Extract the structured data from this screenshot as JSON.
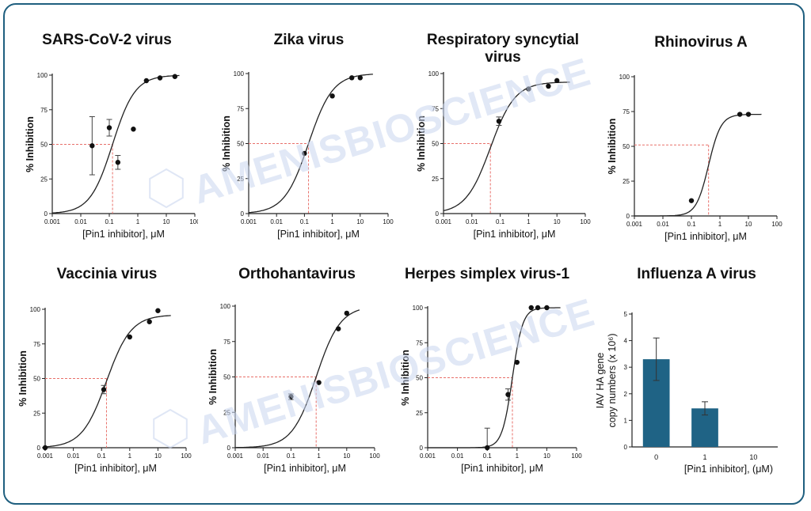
{
  "watermark": "AMENISBIOSCIENCE",
  "colors": {
    "frame": "#1f5f7f",
    "bar": "#1f6385",
    "ref_line": "#e8706a",
    "watermark": "#c9d6ee"
  },
  "chart_data": [
    {
      "id": "sars",
      "type": "scatter",
      "title": "SARS-CoV-2 virus",
      "title_lines": [
        "SARS-CoV-2 virus"
      ],
      "xlabel": "[Pin1 inhibitor], μM",
      "ylabel": "% Inhibition",
      "xscale": "log",
      "xlim": [
        0.001,
        100
      ],
      "ylim": [
        0,
        100
      ],
      "xticks": [
        "0.001",
        "0.01",
        "0.1",
        "1",
        "10",
        "100"
      ],
      "yticks": [
        "0",
        "25",
        "50",
        "75",
        "100"
      ],
      "points": [
        {
          "x": 0.025,
          "y": 49,
          "err": 21
        },
        {
          "x": 0.1,
          "y": 62,
          "err": 6
        },
        {
          "x": 0.2,
          "y": 37,
          "err": 5
        },
        {
          "x": 0.7,
          "y": 61,
          "err": 0
        },
        {
          "x": 2,
          "y": 96,
          "err": 0
        },
        {
          "x": 6,
          "y": 98,
          "err": 0
        },
        {
          "x": 20,
          "y": 99,
          "err": 0
        }
      ],
      "ic50": 0.13,
      "hill": 1.1,
      "top": 100,
      "bottom": 0
    },
    {
      "id": "zika",
      "type": "scatter",
      "title": "Zika virus",
      "title_lines": [
        "Zika virus"
      ],
      "xlabel": "[Pin1 inhibitor], μM",
      "ylabel": "% Inhibition",
      "xscale": "log",
      "xlim": [
        0.001,
        100
      ],
      "ylim": [
        0,
        100
      ],
      "xticks": [
        "0.001",
        "0.01",
        "0.1",
        "1",
        "10",
        "100"
      ],
      "yticks": [
        "0",
        "25",
        "50",
        "75",
        "100"
      ],
      "points": [
        {
          "x": 0.1,
          "y": 43,
          "err": 0
        },
        {
          "x": 1,
          "y": 84,
          "err": 0
        },
        {
          "x": 5,
          "y": 97,
          "err": 0
        },
        {
          "x": 10,
          "y": 97,
          "err": 0
        }
      ],
      "ic50": 0.14,
      "hill": 1.0,
      "top": 100,
      "bottom": 0
    },
    {
      "id": "rsv",
      "type": "scatter",
      "title": "Respiratory syncytial virus",
      "title_lines": [
        "Respiratory syncytial",
        "virus"
      ],
      "xlabel": "[Pin1 inhibitor], μM",
      "ylabel": "% Inhibition",
      "xscale": "log",
      "xlim": [
        0.001,
        100
      ],
      "ylim": [
        0,
        100
      ],
      "xticks": [
        "0.001",
        "0.01",
        "0.1",
        "1",
        "10",
        "100"
      ],
      "yticks": [
        "0",
        "25",
        "50",
        "75",
        "100"
      ],
      "points": [
        {
          "x": 0.09,
          "y": 66,
          "err": 3
        },
        {
          "x": 1,
          "y": 89,
          "err": 0
        },
        {
          "x": 5,
          "y": 91,
          "err": 0
        },
        {
          "x": 10,
          "y": 95,
          "err": 0
        }
      ],
      "ic50": 0.045,
      "hill": 1.0,
      "top": 94,
      "bottom": 0
    },
    {
      "id": "rhino",
      "type": "scatter",
      "title": "Rhinovirus A",
      "title_lines": [
        "Rhinovirus A"
      ],
      "xlabel": "[Pin1 inhibitor], μM",
      "ylabel": "% Inhibition",
      "xscale": "log",
      "xlim": [
        0.001,
        100
      ],
      "ylim": [
        0,
        100
      ],
      "xticks": [
        "0.001",
        "0.01",
        "0.1",
        "1",
        "10",
        "100"
      ],
      "yticks": [
        "0",
        "25",
        "50",
        "75",
        "100"
      ],
      "points": [
        {
          "x": 0.1,
          "y": 11,
          "err": 0
        },
        {
          "x": 5,
          "y": 73,
          "err": 0
        },
        {
          "x": 10,
          "y": 73,
          "err": 0
        }
      ],
      "ic50": 0.4,
      "hill": 2.0,
      "top": 73,
      "bottom": 0,
      "ref_y": 51
    },
    {
      "id": "vaccinia",
      "type": "scatter",
      "title": "Vaccinia virus",
      "title_lines": [
        "Vaccinia virus"
      ],
      "xlabel": "[Pin1 inhibitor], μM",
      "ylabel": "% Inhibition",
      "xscale": "log",
      "xlim": [
        0.001,
        100
      ],
      "ylim": [
        0,
        100
      ],
      "xticks": [
        "0.001",
        "0.01",
        "0.1",
        "1",
        "10",
        "100"
      ],
      "yticks": [
        "0",
        "25",
        "50",
        "75",
        "100"
      ],
      "points": [
        {
          "x": 0.001,
          "y": 0,
          "err": 0
        },
        {
          "x": 0.12,
          "y": 42,
          "err": 3
        },
        {
          "x": 1,
          "y": 80,
          "err": 0
        },
        {
          "x": 5,
          "y": 91,
          "err": 0
        },
        {
          "x": 10,
          "y": 99,
          "err": 0
        }
      ],
      "ic50": 0.15,
      "hill": 1.0,
      "top": 96,
      "bottom": 0
    },
    {
      "id": "ortho",
      "type": "scatter",
      "title": "Orthohantavirus",
      "title_lines": [
        "Orthohantavirus"
      ],
      "xlabel": "[Pin1 inhibitor], μM",
      "ylabel": "% Inhibition",
      "xscale": "log",
      "xlim": [
        0.001,
        100
      ],
      "ylim": [
        0,
        100
      ],
      "xticks": [
        "0.001",
        "0.01",
        "0.1",
        "1",
        "10",
        "100"
      ],
      "yticks": [
        "0",
        "25",
        "50",
        "75",
        "100"
      ],
      "points": [
        {
          "x": 0.1,
          "y": 36,
          "err": 2
        },
        {
          "x": 1,
          "y": 46,
          "err": 0
        },
        {
          "x": 5,
          "y": 84,
          "err": 0
        },
        {
          "x": 10,
          "y": 95,
          "err": 0
        }
      ],
      "ic50": 0.8,
      "hill": 1.0,
      "top": 100,
      "bottom": 0
    },
    {
      "id": "hsv",
      "type": "scatter",
      "title": "Herpes simplex virus-1",
      "title_lines": [
        "Herpes simplex virus-1"
      ],
      "xlabel": "[Pin1 inhibitor], μM",
      "ylabel": "% Inhibition",
      "xscale": "log",
      "xlim": [
        0.001,
        100
      ],
      "ylim": [
        0,
        100
      ],
      "xticks": [
        "0.001",
        "0.01",
        "0.1",
        "1",
        "10",
        "100"
      ],
      "yticks": [
        "0",
        "25",
        "50",
        "75",
        "100"
      ],
      "points": [
        {
          "x": 0.1,
          "y": 0,
          "err": 14
        },
        {
          "x": 0.5,
          "y": 38,
          "err": 4
        },
        {
          "x": 1,
          "y": 61,
          "err": 0
        },
        {
          "x": 3,
          "y": 100,
          "err": 0
        },
        {
          "x": 5,
          "y": 100,
          "err": 0
        },
        {
          "x": 10,
          "y": 100,
          "err": 0
        }
      ],
      "ic50": 0.7,
      "hill": 2.5,
      "top": 100,
      "bottom": 0
    },
    {
      "id": "flu",
      "type": "bar",
      "title": "Influenza A virus",
      "title_lines": [
        "Influenza A virus"
      ],
      "xlabel": "[Pin1 inhibitor], (μM)",
      "ylabel_lines": [
        "IAV HA gene",
        "copy numbers (x 10⁶)"
      ],
      "categories": [
        "0",
        "1",
        "10"
      ],
      "values": [
        3.3,
        1.45,
        0
      ],
      "errors": [
        0.8,
        0.25,
        0
      ],
      "ylim": [
        0,
        5
      ],
      "yticks": [
        "0",
        "1",
        "2",
        "3",
        "4",
        "5"
      ]
    }
  ]
}
